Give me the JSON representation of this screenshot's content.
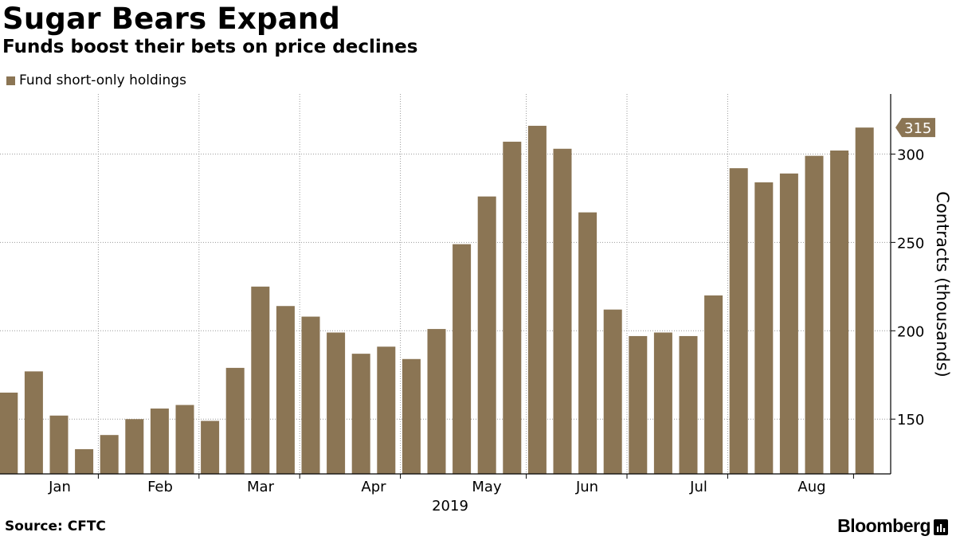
{
  "header": {
    "title": "Sugar Bears Expand",
    "subtitle": "Funds boost their bets on price declines"
  },
  "legend": {
    "label": "Fund short-only holdings"
  },
  "footer": {
    "source": "Source: CFTC",
    "brand": "Bloomberg"
  },
  "colors": {
    "bar": "#8b7554",
    "grid": "#999999",
    "axis": "#000000"
  },
  "chart_data": {
    "type": "bar",
    "title": "Sugar Bears Expand",
    "subtitle": "Funds boost their bets on price declines",
    "ylabel": "Contracts (thousands)",
    "year_label": "2019",
    "ylim": [
      119,
      334
    ],
    "yticks": [
      150,
      200,
      250,
      300
    ],
    "y_axis_side": "right",
    "grid": true,
    "legend_position": "top-left",
    "month_labels": [
      "Jan",
      "Feb",
      "Mar",
      "Apr",
      "May",
      "Jun",
      "Jul",
      "Aug"
    ],
    "series": [
      {
        "name": "Fund short-only holdings",
        "values": [
          165,
          177,
          152,
          133,
          141,
          150,
          156,
          158,
          149,
          179,
          225,
          214,
          208,
          199,
          187,
          191,
          184,
          201,
          249,
          276,
          307,
          316,
          303,
          267,
          212,
          197,
          199,
          197,
          220,
          292,
          284,
          289,
          299,
          302,
          315
        ]
      }
    ],
    "last_value_label": "315"
  }
}
